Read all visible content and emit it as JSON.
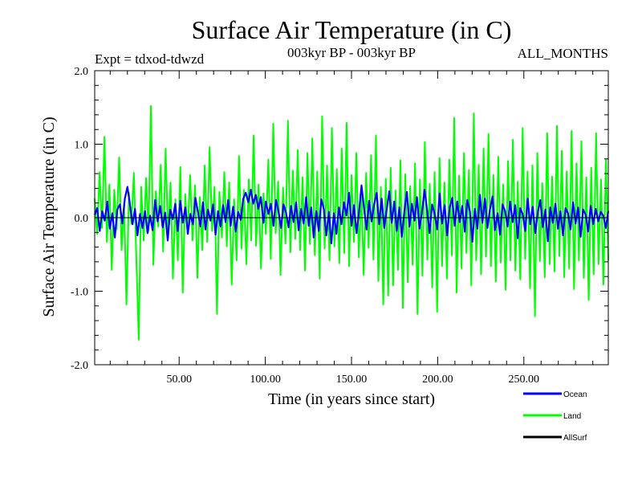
{
  "chart_data": {
    "type": "line",
    "title": "Surface Air Temperature (in C)",
    "subtitle_left": "Expt = tdxod-tdwzd",
    "subtitle_center": "003kyr BP - 003kyr BP",
    "subtitle_right": "ALL_MONTHS",
    "xlabel": "Time (in years since start)",
    "ylabel": "Surface Air Temperature (in C)",
    "xlim": [
      1,
      299
    ],
    "ylim": [
      -2.0,
      2.0
    ],
    "x_ticks": [
      {
        "value": 50,
        "label": "50.00"
      },
      {
        "value": 100,
        "label": "100.00"
      },
      {
        "value": 150,
        "label": "150.00"
      },
      {
        "value": 200,
        "label": "200.00"
      },
      {
        "value": 250,
        "label": "250.00"
      }
    ],
    "y_ticks": [
      {
        "value": 2.0,
        "label": "2.0"
      },
      {
        "value": 1.0,
        "label": "1.0"
      },
      {
        "value": 0.0,
        "label": "0.0"
      },
      {
        "value": -1.0,
        "label": "-1.0"
      },
      {
        "value": -2.0,
        "label": "-2.0"
      }
    ],
    "grid": false,
    "legend_position": "bottom-right",
    "x_step_years": 0.0833,
    "series": [
      {
        "name": "Land",
        "color": "#00ff00",
        "approx_envelope": [
          -1.5,
          1.5
        ],
        "values": [
          0.26,
          -0.22,
          0.62,
          -0.14,
          1.1,
          -0.33,
          0.45,
          -0.71,
          0.38,
          -0.16,
          0.82,
          -0.44,
          0.21,
          -1.18,
          0.34,
          -0.08,
          0.61,
          -0.52,
          -1.66,
          0.42,
          -0.31,
          0.54,
          -0.18,
          1.52,
          -0.64,
          0.36,
          -0.12,
          0.72,
          -0.46,
          0.94,
          -0.27,
          0.48,
          -0.83,
          0.25,
          -0.58,
          0.69,
          -1.02,
          0.32,
          -0.22,
          0.58,
          -0.31,
          0.44,
          -0.82,
          0.28,
          -0.44,
          0.71,
          -0.33,
          0.96,
          -0.18,
          0.42,
          -1.31,
          0.35,
          -0.27,
          0.62,
          -0.39,
          0.48,
          -0.91,
          0.25,
          -0.58,
          0.84,
          -0.42,
          0.38,
          -0.63,
          0.52,
          -0.31,
          1.12,
          -0.38,
          0.45,
          -0.69,
          0.33,
          -0.22,
          0.79,
          -0.56,
          1.28,
          -0.21,
          0.49,
          -0.78,
          0.41,
          -0.35,
          1.32,
          -0.47,
          0.64,
          -0.29,
          0.92,
          -0.44,
          0.55,
          -0.72,
          0.88,
          -0.36,
          1.08,
          -0.51,
          0.63,
          -0.83,
          1.38,
          -0.42,
          0.71,
          -0.58,
          1.22,
          -0.39,
          0.66,
          -0.62,
          0.94,
          -0.48,
          1.29,
          -0.66,
          0.58,
          -0.33,
          0.88,
          -0.54,
          0.39,
          -0.78,
          0.61,
          -0.41,
          0.85,
          -0.57,
          1.12,
          -0.86,
          0.42,
          -1.18,
          0.53,
          -1.06,
          0.68,
          -0.92,
          0.37,
          -0.71,
          0.78,
          -1.23,
          0.59,
          -0.88,
          0.43,
          -0.64,
          0.74,
          -1.31,
          0.52,
          -0.79,
          1.03,
          -0.57,
          0.46,
          -0.95,
          0.62,
          -1.28,
          0.81,
          -0.66,
          0.48,
          -0.83,
          0.79,
          -0.51,
          1.36,
          -1.02,
          0.57,
          -0.69,
          0.88,
          -0.48,
          0.65,
          -0.92,
          1.42,
          -0.58,
          0.72,
          -0.77,
          0.94,
          -0.53,
          1.14,
          -0.66,
          0.58,
          -0.87,
          0.83,
          -0.61,
          0.45,
          -0.98,
          0.77,
          -0.58,
          1.06,
          -0.72,
          0.49,
          -0.84,
          1.22,
          -0.56,
          0.63,
          -0.96,
          0.71,
          -1.34,
          0.88,
          -0.59,
          0.47,
          -0.81,
          1.15,
          -0.63,
          0.56,
          -0.73,
          1.25,
          -0.52,
          0.91,
          -0.81,
          0.63,
          -0.69,
          1.18,
          -0.97,
          0.74,
          -0.58,
          1.04,
          -0.82,
          0.55,
          -1.12,
          0.68,
          -0.77,
          1.15,
          -0.63,
          0.52,
          -0.91,
          0.79,
          -0.58
        ]
      },
      {
        "name": "Ocean",
        "color": "#0000ff",
        "approx_envelope": [
          -0.5,
          0.5
        ],
        "values": [
          0.04,
          0.13,
          -0.18,
          0.09,
          -0.04,
          0.22,
          -0.15,
          0.06,
          -0.27,
          0.11,
          0.18,
          -0.08,
          0.26,
          0.42,
          0.18,
          -0.09,
          0.12,
          -0.24,
          0.05,
          -0.14,
          0.09,
          -0.21,
          0.03,
          -0.17,
          0.24,
          -0.05,
          0.16,
          -0.13,
          0.07,
          -0.31,
          0.11,
          -0.02,
          0.19,
          -0.18,
          0.23,
          -0.07,
          0.14,
          -0.22,
          0.05,
          -0.09,
          0.27,
          0.08,
          -0.12,
          0.21,
          -0.16,
          0.11,
          -0.04,
          0.18,
          -0.23,
          0.09,
          -0.12,
          0.17,
          -0.06,
          0.24,
          -0.11,
          0.15,
          -0.19,
          0.08,
          -0.03,
          0.26,
          0.34,
          0.21,
          0.38,
          0.19,
          0.31,
          0.12,
          0.28,
          -0.07,
          0.22,
          0.05,
          0.19,
          -0.11,
          0.24,
          0.09,
          -0.14,
          0.18,
          0.07,
          -0.13,
          0.16,
          -0.06,
          0.21,
          -0.17,
          0.12,
          -0.08,
          0.28,
          -0.11,
          0.14,
          -0.27,
          0.09,
          -0.18,
          0.25,
          0.12,
          -0.24,
          0.08,
          -0.35,
          0.06,
          -0.22,
          0.14,
          -0.09,
          0.21,
          0.03,
          0.34,
          -0.11,
          0.17,
          -0.21,
          0.08,
          0.44,
          0.12,
          -0.16,
          0.23,
          -0.05,
          0.18,
          0.34,
          -0.09,
          0.26,
          -0.14,
          0.11,
          0.36,
          -0.07,
          0.22,
          -0.18,
          0.14,
          -0.26,
          0.09,
          0.35,
          -0.12,
          0.19,
          -0.04,
          0.28,
          -0.15,
          0.07,
          0.38,
          0.11,
          -0.21,
          0.18,
          0.06,
          -0.16,
          0.33,
          -0.08,
          0.17,
          -0.24,
          0.14,
          0.27,
          -0.11,
          0.22,
          -0.06,
          0.16,
          -0.19,
          0.24,
          0.09,
          -0.33,
          0.12,
          -0.15,
          0.31,
          -0.07,
          0.26,
          -0.14,
          0.11,
          0.29,
          -0.17,
          0.06,
          -0.23,
          0.18,
          0.09,
          -0.12,
          0.22,
          -0.06,
          0.17,
          -0.28,
          0.13,
          0.05,
          -0.18,
          0.26,
          -0.09,
          0.15,
          -0.21,
          0.08,
          0.24,
          -0.13,
          0.11,
          -0.32,
          0.14,
          -0.07,
          0.19,
          -0.15,
          0.09,
          -0.24,
          0.13,
          0.06,
          -0.16,
          0.21,
          -0.08,
          0.14,
          -0.26,
          0.11,
          0.04,
          -0.19,
          0.16,
          -0.09,
          0.12,
          -0.05,
          0.08,
          0.03,
          -0.14,
          0.09
        ]
      },
      {
        "name": "AllSurf",
        "color": "#000000",
        "values": []
      }
    ]
  }
}
